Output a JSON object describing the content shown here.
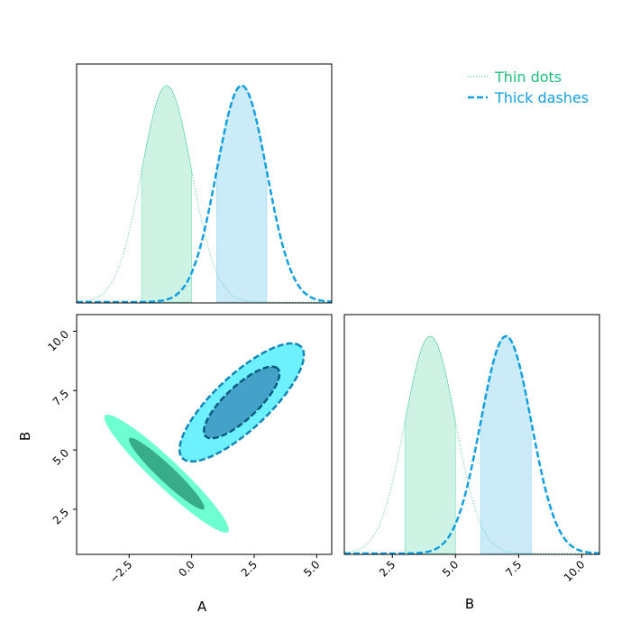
{
  "chart_data": {
    "type": "corner",
    "parameters": [
      "A",
      "B"
    ],
    "legend": {
      "placement": "top-right",
      "entries": [
        {
          "label": "Thin dots",
          "color": "#1fbf7a",
          "style": "dotted"
        },
        {
          "label": "Thick dashes",
          "color": "#13a0e0",
          "style": "dashed"
        }
      ]
    },
    "series": [
      {
        "name": "Thin dots",
        "color": "#1fbf7a",
        "fill_color": "#5cd6a6",
        "contour_colors": [
          "#2e9e7a",
          "#55ffc8"
        ],
        "A": {
          "mean": -1.0,
          "sigma": 1.0,
          "interval": [
            -2.0,
            0.0
          ]
        },
        "B": {
          "mean": 4.0,
          "sigma": 1.0,
          "interval": [
            3.0,
            5.0
          ]
        },
        "correlation": -0.95
      },
      {
        "name": "Thick dashes",
        "color": "#13a0e0",
        "fill_color": "#7dcdf0",
        "contour_colors": [
          "#3d94c0",
          "#55eeff"
        ],
        "A": {
          "mean": 2.0,
          "sigma": 1.0,
          "interval": [
            1.0,
            3.0
          ]
        },
        "B": {
          "mean": 7.0,
          "sigma": 1.0,
          "interval": [
            6.0,
            8.0
          ]
        },
        "correlation": 0.8
      }
    ],
    "axes": {
      "A": {
        "label": "A",
        "range": [
          -4.6,
          5.6
        ],
        "ticks": [
          -2.5,
          0.0,
          2.5,
          5.0
        ],
        "tick_labels": [
          "−2.5",
          "0.0",
          "2.5",
          "5.0"
        ]
      },
      "B": {
        "label": "B",
        "range": [
          0.6,
          10.7
        ],
        "ticks": [
          2.5,
          5.0,
          7.5,
          10.0
        ],
        "tick_labels": [
          "2.5",
          "5.0",
          "7.5",
          "10.0"
        ]
      }
    }
  }
}
